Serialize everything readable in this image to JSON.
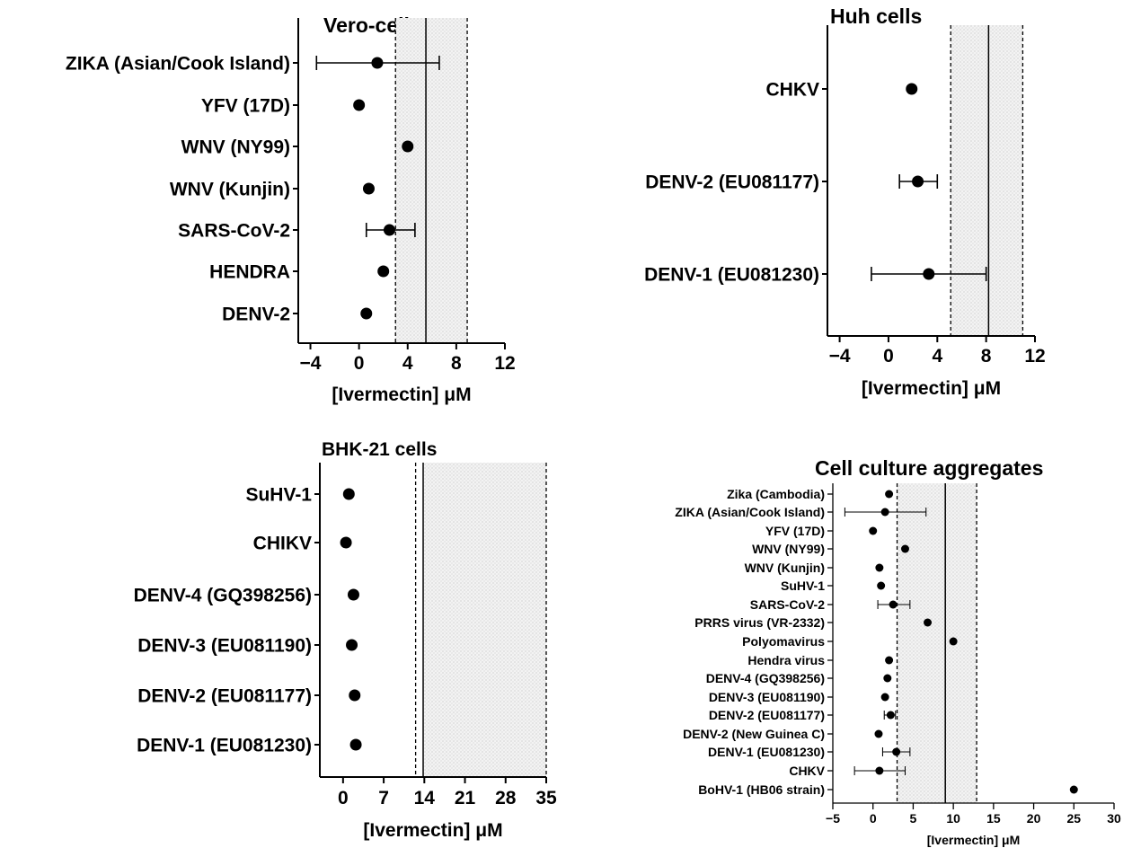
{
  "chart_data": [
    {
      "type": "scatter",
      "title": "Vero-cells",
      "xlabel": "[Ivermectin] μM",
      "xlim": [
        -5,
        12
      ],
      "xticks": [
        -4,
        0,
        4,
        8,
        12
      ],
      "categories": [
        "ZIKA (Asian/Cook Island)",
        "YFV (17D)",
        "WNV (NY99)",
        "WNV (Kunjin)",
        "SARS-CoV-2",
        "HENDRA",
        "DENV-2"
      ],
      "values": [
        1.5,
        0.0,
        4.0,
        0.8,
        2.5,
        2.0,
        0.6
      ],
      "error_low": [
        -3.5,
        null,
        null,
        null,
        0.6,
        null,
        null
      ],
      "error_high": [
        6.6,
        null,
        null,
        null,
        4.6,
        null,
        null
      ],
      "reference_lines": {
        "dashed": [
          3.0,
          8.9
        ],
        "solid": [
          5.5
        ]
      },
      "shaded_range": [
        3.0,
        8.9
      ]
    },
    {
      "type": "scatter",
      "title": "Huh cells",
      "xlabel": "[Ivermectin] μM",
      "xlim": [
        -5,
        12
      ],
      "xticks": [
        -4,
        0,
        4,
        8,
        12
      ],
      "categories": [
        "CHKV",
        "DENV-2 (EU081177)",
        "DENV-1 (EU081230)"
      ],
      "values": [
        1.9,
        2.4,
        3.3
      ],
      "error_low": [
        null,
        0.9,
        -1.4
      ],
      "error_high": [
        null,
        4.0,
        8.0
      ],
      "reference_lines": {
        "dashed": [
          5.1,
          11.0
        ],
        "solid": [
          8.2
        ]
      },
      "shaded_range": [
        5.1,
        11.0
      ]
    },
    {
      "type": "scatter",
      "title": "BHK-21 cells",
      "xlabel": "[Ivermectin] μM",
      "xlim": [
        -4,
        35
      ],
      "xticks": [
        0,
        7,
        14,
        21,
        28,
        35
      ],
      "categories": [
        "SuHV-1",
        "CHIKV",
        "DENV-4  (GQ398256)",
        "DENV-3 (EU081190)",
        "DENV-2 (EU081177)",
        "DENV-1 (EU081230)"
      ],
      "values": [
        1.0,
        0.5,
        1.8,
        1.5,
        2.0,
        2.2
      ],
      "error_low": [
        null,
        null,
        null,
        null,
        null,
        null
      ],
      "error_high": [
        null,
        null,
        null,
        null,
        null,
        null
      ],
      "reference_lines": {
        "dashed": [
          12.5,
          35.0
        ],
        "solid": [
          13.8
        ]
      },
      "shaded_range": [
        13.8,
        35.0
      ]
    },
    {
      "type": "scatter",
      "title": "Cell culture aggregates",
      "xlabel": "[Ivermectin] μM",
      "xlim": [
        -5,
        30
      ],
      "xticks": [
        -5,
        0,
        5,
        10,
        15,
        20,
        25,
        30
      ],
      "categories": [
        "Zika (Cambodia)",
        "ZIKA (Asian/Cook Island)",
        "YFV (17D)",
        "WNV (NY99)",
        "WNV (Kunjin)",
        "SuHV-1",
        "SARS-CoV-2",
        "PRRS virus (VR-2332)",
        "Polyomavirus",
        "Hendra virus",
        "DENV-4 (GQ398256)",
        "DENV-3 (EU081190)",
        "DENV-2 (EU081177)",
        "DENV-2 (New Guinea C)",
        "DENV-1 (EU081230)",
        "CHKV",
        "BoHV-1 (HB06 strain)"
      ],
      "values": [
        2.0,
        1.5,
        0.0,
        4.0,
        0.8,
        1.0,
        2.5,
        6.8,
        10.0,
        2.0,
        1.8,
        1.5,
        2.2,
        0.7,
        2.9,
        0.8,
        25.0
      ],
      "error_low": [
        null,
        -3.5,
        null,
        null,
        null,
        null,
        0.6,
        null,
        null,
        null,
        null,
        null,
        1.4,
        null,
        1.2,
        -2.3,
        null
      ],
      "error_high": [
        null,
        6.6,
        null,
        null,
        null,
        null,
        4.6,
        null,
        null,
        null,
        null,
        null,
        2.8,
        null,
        4.6,
        4.0,
        null
      ],
      "reference_lines": {
        "dashed": [
          3.0,
          12.9
        ],
        "solid": [
          9.0
        ]
      },
      "shaded_range": [
        3.0,
        12.9
      ]
    }
  ]
}
